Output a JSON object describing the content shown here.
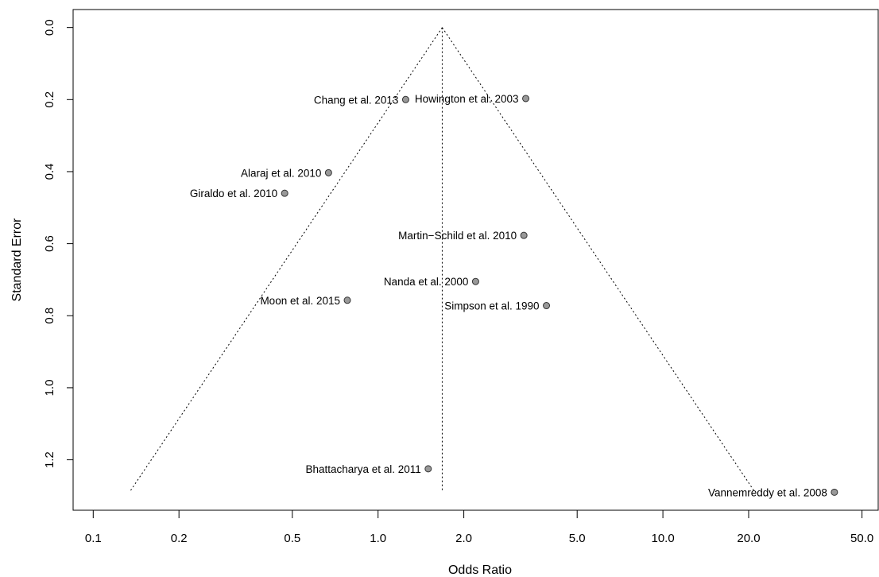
{
  "chart_data": {
    "type": "scatter",
    "subtype": "funnel",
    "xlabel": "Odds Ratio",
    "ylabel": "Standard Error",
    "x_scale": "log",
    "xlim": [
      0.085,
      57
    ],
    "ylim": [
      1.34,
      -0.05
    ],
    "y_inverted": true,
    "x_ticks": [
      "0.1",
      "0.2",
      "0.5",
      "1.0",
      "2.0",
      "5.0",
      "10.0",
      "20.0",
      "50.0"
    ],
    "x_tick_values": [
      0.1,
      0.2,
      0.5,
      1.0,
      2.0,
      5.0,
      10.0,
      20.0,
      50.0
    ],
    "y_ticks": [
      "0.0",
      "0.2",
      "0.4",
      "0.6",
      "0.8",
      "1.0",
      "1.2"
    ],
    "y_tick_values": [
      0.0,
      0.2,
      0.4,
      0.6,
      0.8,
      1.0,
      1.2
    ],
    "grid": false,
    "pooled_estimate": 1.68,
    "funnel_se_max": 1.29,
    "points": [
      {
        "label": "Chang et al. 2013",
        "x": 1.25,
        "y": 0.2,
        "label_side": "left"
      },
      {
        "label": "Howington et al. 2003",
        "x": 3.3,
        "y": 0.197,
        "label_side": "left"
      },
      {
        "label": "Alaraj et al. 2010",
        "x": 0.67,
        "y": 0.403,
        "label_side": "left"
      },
      {
        "label": "Giraldo et al. 2010",
        "x": 0.47,
        "y": 0.46,
        "label_side": "left"
      },
      {
        "label": "Martin−Schild et al. 2010",
        "x": 3.25,
        "y": 0.577,
        "label_side": "left"
      },
      {
        "label": "Nanda et al. 2000",
        "x": 2.2,
        "y": 0.705,
        "label_side": "left"
      },
      {
        "label": "Moon et al. 2015",
        "x": 0.78,
        "y": 0.757,
        "label_side": "left"
      },
      {
        "label": "Simpson et al. 1990",
        "x": 3.9,
        "y": 0.772,
        "label_side": "left"
      },
      {
        "label": "Bhattacharya et al. 2011",
        "x": 1.5,
        "y": 1.225,
        "label_side": "left"
      },
      {
        "label": "Vannemreddy et al. 2008",
        "x": 40.0,
        "y": 1.29,
        "label_side": "left"
      }
    ],
    "point_color": "#999999",
    "point_stroke": "#333333"
  }
}
